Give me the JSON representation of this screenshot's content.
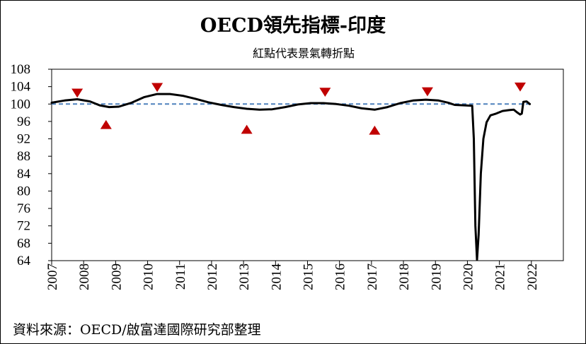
{
  "title": "OECD領先指標-印度",
  "subtitle": "紅點代表景氣轉折點",
  "source": "資料來源：OECD/啟富達國際研究部整理",
  "colors": {
    "line": "#000000",
    "reference": "#4F81BD",
    "markers": "#C00000"
  },
  "chart_data": {
    "type": "line",
    "title": "OECD領先指標-印度",
    "subtitle": "紅點代表景氣轉折點",
    "xlabel": "",
    "ylabel": "",
    "xlim": [
      2007,
      2023
    ],
    "ylim": [
      64,
      108
    ],
    "grid": false,
    "y_ticks": [
      64,
      68,
      72,
      76,
      80,
      84,
      88,
      92,
      96,
      100,
      104,
      108
    ],
    "x_ticks": [
      "2007",
      "2008",
      "2009",
      "2010",
      "2011",
      "2012",
      "2013",
      "2014",
      "2015",
      "2016",
      "2017",
      "2018",
      "2019",
      "2020",
      "2021",
      "2022"
    ],
    "reference_line": {
      "y": 100,
      "style": "dashed"
    },
    "series": [
      {
        "values": [
          [
            2007.0,
            100.3
          ],
          [
            2007.4,
            100.8
          ],
          [
            2007.8,
            101.1
          ],
          [
            2008.2,
            100.6
          ],
          [
            2008.5,
            99.7
          ],
          [
            2008.8,
            99.3
          ],
          [
            2009.1,
            99.4
          ],
          [
            2009.5,
            100.3
          ],
          [
            2009.9,
            101.6
          ],
          [
            2010.3,
            102.3
          ],
          [
            2010.7,
            102.3
          ],
          [
            2011.1,
            101.9
          ],
          [
            2011.5,
            101.2
          ],
          [
            2011.9,
            100.4
          ],
          [
            2012.3,
            99.8
          ],
          [
            2012.7,
            99.3
          ],
          [
            2013.1,
            98.9
          ],
          [
            2013.5,
            98.7
          ],
          [
            2013.9,
            98.8
          ],
          [
            2014.3,
            99.3
          ],
          [
            2014.7,
            99.9
          ],
          [
            2015.1,
            100.2
          ],
          [
            2015.5,
            100.2
          ],
          [
            2015.9,
            100.0
          ],
          [
            2016.3,
            99.6
          ],
          [
            2016.7,
            99.0
          ],
          [
            2017.1,
            98.7
          ],
          [
            2017.5,
            99.3
          ],
          [
            2017.9,
            100.2
          ],
          [
            2018.3,
            100.8
          ],
          [
            2018.7,
            101.0
          ],
          [
            2019.1,
            100.8
          ],
          [
            2019.4,
            100.3
          ],
          [
            2019.6,
            99.8
          ],
          [
            2019.9,
            99.7
          ],
          [
            2020.15,
            99.6
          ],
          [
            2020.2,
            92.0
          ],
          [
            2020.25,
            72.0
          ],
          [
            2020.3,
            64.2
          ],
          [
            2020.35,
            70.0
          ],
          [
            2020.42,
            84.0
          ],
          [
            2020.5,
            92.0
          ],
          [
            2020.6,
            95.8
          ],
          [
            2020.72,
            97.4
          ],
          [
            2020.9,
            97.8
          ],
          [
            2021.1,
            98.4
          ],
          [
            2021.3,
            98.6
          ],
          [
            2021.45,
            98.7
          ],
          [
            2021.55,
            98.1
          ],
          [
            2021.65,
            97.6
          ],
          [
            2021.7,
            97.8
          ],
          [
            2021.75,
            100.5
          ],
          [
            2021.85,
            100.6
          ],
          [
            2021.95,
            100.0
          ]
        ]
      }
    ],
    "markers": {
      "peaks": [
        [
          2007.8,
          102.5
        ],
        [
          2010.3,
          103.8
        ],
        [
          2015.55,
          102.7
        ],
        [
          2018.75,
          102.8
        ],
        [
          2021.65,
          103.9
        ]
      ],
      "troughs": [
        [
          2008.7,
          95.3
        ],
        [
          2013.1,
          94.2
        ],
        [
          2017.1,
          94.0
        ]
      ]
    }
  }
}
